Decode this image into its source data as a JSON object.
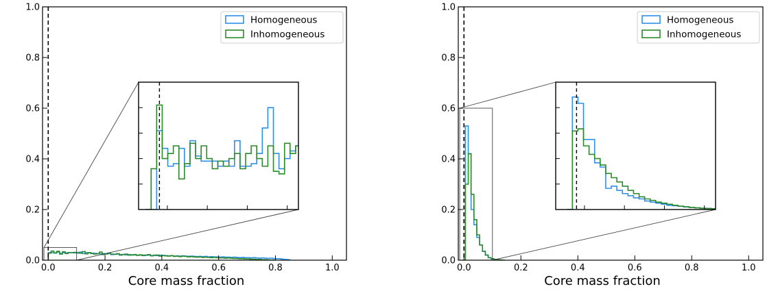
{
  "chart_data": [
    {
      "type": "histogram",
      "panel": "left",
      "xlabel": "Core mass fraction",
      "ylabel": "",
      "xlim": [
        -0.02,
        1.05
      ],
      "ylim": [
        0,
        1.0
      ],
      "xticks": [
        "0.0",
        "0.2",
        "0.4",
        "0.6",
        "0.8",
        "1.0"
      ],
      "yticks": [
        "0.0",
        "0.2",
        "0.4",
        "0.6",
        "0.8",
        "1.0"
      ],
      "vline_x": 0.0,
      "legend": {
        "position": "top-right",
        "entries": [
          "Homogeneous",
          "Inhomogeneous"
        ]
      },
      "colors": {
        "Homogeneous": "#2f8fe8",
        "Inhomogeneous": "#2a8a2a"
      },
      "bin_width": 0.01,
      "series": [
        {
          "name": "Homogeneous",
          "bin_start": 0.0,
          "values": [
            0.03,
            0.03,
            0.028,
            0.032,
            0.027,
            0.03,
            0.029,
            0.03,
            0.03,
            0.029,
            0.028,
            0.032,
            0.026,
            0.03,
            0.029,
            0.028,
            0.027,
            0.026,
            0.025,
            0.026,
            0.024,
            0.026,
            0.022,
            0.024,
            0.024,
            0.022,
            0.023,
            0.021,
            0.022,
            0.02,
            0.021,
            0.02,
            0.02,
            0.02,
            0.019,
            0.02,
            0.018,
            0.02,
            0.018,
            0.02,
            0.019,
            0.018,
            0.017,
            0.018,
            0.016,
            0.017,
            0.016,
            0.017,
            0.016,
            0.015,
            0.016,
            0.015,
            0.014,
            0.015,
            0.014,
            0.015,
            0.013,
            0.014,
            0.013,
            0.013,
            0.012,
            0.013,
            0.012,
            0.012,
            0.011,
            0.012,
            0.011,
            0.01,
            0.011,
            0.01,
            0.01,
            0.009,
            0.01,
            0.009,
            0.008,
            0.009,
            0.008,
            0.007,
            0.008,
            0.007,
            0.006,
            0.006,
            0.004,
            0.003,
            0.002
          ]
        },
        {
          "name": "Inhomogeneous",
          "bin_start": 0.0,
          "values": [
            0.028,
            0.036,
            0.029,
            0.035,
            0.024,
            0.033,
            0.026,
            0.03,
            0.03,
            0.031,
            0.03,
            0.028,
            0.034,
            0.025,
            0.03,
            0.026,
            0.024,
            0.026,
            0.032,
            0.022,
            0.025,
            0.028,
            0.024,
            0.023,
            0.026,
            0.02,
            0.022,
            0.024,
            0.02,
            0.021,
            0.022,
            0.019,
            0.021,
            0.018,
            0.02,
            0.022,
            0.017,
            0.019,
            0.02,
            0.016,
            0.018,
            0.017,
            0.016,
            0.018,
            0.015,
            0.016,
            0.014,
            0.016,
            0.015,
            0.013,
            0.014,
            0.013,
            0.012,
            0.013,
            0.011,
            0.012,
            0.011,
            0.01,
            0.011,
            0.01,
            0.009,
            0.009,
            0.008,
            0.009,
            0.008,
            0.007,
            0.007,
            0.006,
            0.006,
            0.005,
            0.005,
            0.004,
            0.004,
            0.003,
            0.003,
            0.002,
            0.002,
            0.001,
            0.001,
            0.001
          ]
        }
      ],
      "zoom_box": {
        "x": [
          -0.015,
          0.1
        ],
        "y": [
          0,
          0.05
        ]
      },
      "inset": {
        "xlim": [
          -0.015,
          0.1
        ],
        "ylim": [
          0,
          0.05
        ],
        "vline_x": 0.0,
        "bin_width": 0.004,
        "series": [
          {
            "name": "Homogeneous",
            "bin_start": -0.01,
            "values": [
              0.0,
              0.0,
              0.031,
              0.024,
              0.017,
              0.018,
              0.024,
              0.017,
              0.027,
              0.021,
              0.019,
              0.019,
              0.019,
              0.017,
              0.019,
              0.017,
              0.027,
              0.017,
              0.017,
              0.018,
              0.022,
              0.032,
              0.04,
              0.022,
              0.016,
              0.02,
              0.023,
              0.025,
              0.02
            ]
          },
          {
            "name": "Inhomogeneous",
            "bin_start": -0.01,
            "values": [
              0.0,
              0.016,
              0.041,
              0.02,
              0.022,
              0.025,
              0.012,
              0.018,
              0.026,
              0.02,
              0.025,
              0.02,
              0.016,
              0.019,
              0.017,
              0.02,
              0.022,
              0.016,
              0.022,
              0.025,
              0.02,
              0.017,
              0.025,
              0.015,
              0.014,
              0.026,
              0.022,
              0.025,
              0.02
            ]
          }
        ]
      }
    },
    {
      "type": "histogram",
      "panel": "right",
      "xlabel": "Core mass fraction",
      "ylabel": "",
      "xlim": [
        -0.02,
        1.05
      ],
      "ylim": [
        0,
        1.0
      ],
      "xticks": [
        "0.0",
        "0.2",
        "0.4",
        "0.6",
        "0.8",
        "1.0"
      ],
      "yticks": [
        "0.0",
        "0.2",
        "0.4",
        "0.6",
        "0.8",
        "1.0"
      ],
      "vline_x": 0.0,
      "legend": {
        "position": "top-right",
        "entries": [
          "Homogeneous",
          "Inhomogeneous"
        ]
      },
      "colors": {
        "Homogeneous": "#2f8fe8",
        "Inhomogeneous": "#2a8a2a"
      },
      "bin_width": 0.01,
      "series": [
        {
          "name": "Homogeneous",
          "bin_start": -0.005,
          "values": [
            0.0,
            0.53,
            0.42,
            0.2,
            0.14,
            0.09,
            0.06,
            0.035,
            0.02,
            0.01,
            0.005,
            0.003,
            0.002,
            0.001,
            0.0
          ]
        },
        {
          "name": "Inhomogeneous",
          "bin_start": -0.005,
          "values": [
            0.0,
            0.3,
            0.42,
            0.26,
            0.16,
            0.1,
            0.06,
            0.035,
            0.02,
            0.01,
            0.006,
            0.003,
            0.002,
            0.001,
            0.0
          ]
        }
      ],
      "zoom_box": {
        "x": [
          -0.015,
          0.1
        ],
        "y": [
          0,
          0.6
        ]
      },
      "inset": {
        "xlim": [
          -0.015,
          0.1
        ],
        "ylim": [
          0,
          0.6
        ],
        "vline_x": 0.0,
        "bin_width": 0.004,
        "series": [
          {
            "name": "Homogeneous",
            "bin_start": -0.007,
            "values": [
              0.0,
              0.53,
              0.5,
              0.33,
              0.33,
              0.22,
              0.2,
              0.1,
              0.11,
              0.09,
              0.075,
              0.065,
              0.055,
              0.05,
              0.04,
              0.035,
              0.03,
              0.025,
              0.02,
              0.018,
              0.015,
              0.012,
              0.01,
              0.008,
              0.006,
              0.005,
              0.004,
              0.003
            ]
          },
          {
            "name": "Inhomogeneous",
            "bin_start": -0.007,
            "values": [
              0.0,
              0.37,
              0.38,
              0.3,
              0.26,
              0.24,
              0.21,
              0.17,
              0.15,
              0.13,
              0.11,
              0.09,
              0.075,
              0.06,
              0.05,
              0.043,
              0.035,
              0.03,
              0.025,
              0.02,
              0.016,
              0.013,
              0.01,
              0.008,
              0.006,
              0.005,
              0.004,
              0.003
            ]
          }
        ]
      }
    }
  ]
}
